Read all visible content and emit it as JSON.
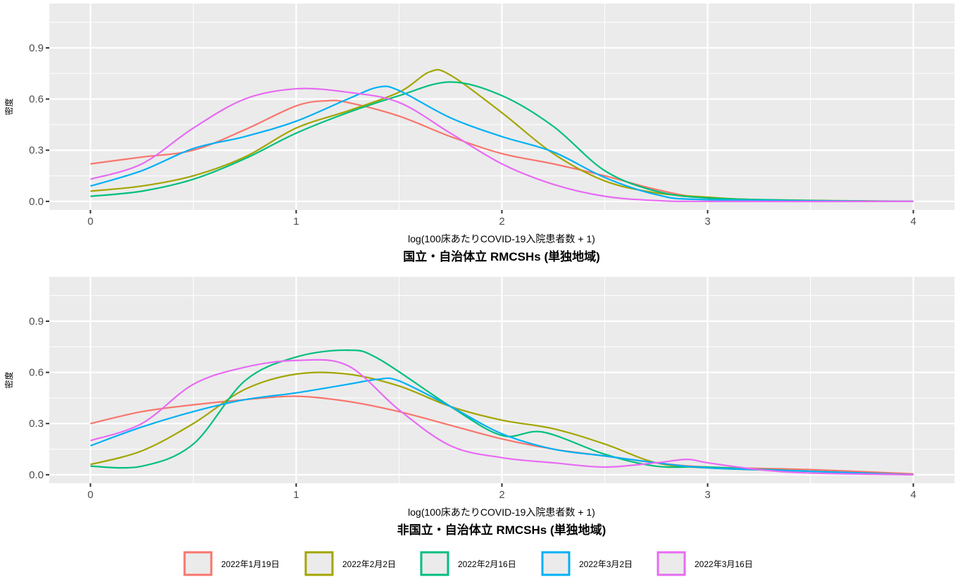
{
  "chart_data": [
    {
      "type": "line",
      "title": "国立・自治体立 RMCSHs (単独地域)",
      "xlabel": "log(100床あたりCOVID-19入院患者数 + 1)",
      "ylabel": "密度",
      "xlim": [
        -0.2,
        4.2
      ],
      "ylim": [
        -0.05,
        1.16
      ],
      "xticks": [
        "0",
        "1",
        "2",
        "3",
        "4"
      ],
      "yticks": [
        "0.0",
        "0.3",
        "0.6",
        "0.9"
      ],
      "grid": true,
      "series": [
        {
          "name": "2022年1月19日",
          "color": "#F8766D",
          "x": [
            0,
            0.25,
            0.5,
            0.75,
            1,
            1.15,
            1.25,
            1.5,
            1.75,
            2,
            2.25,
            2.5,
            2.75,
            3,
            3.5,
            4
          ],
          "y": [
            0.22,
            0.26,
            0.3,
            0.42,
            0.56,
            0.59,
            0.58,
            0.5,
            0.38,
            0.28,
            0.22,
            0.15,
            0.07,
            0.02,
            0.005,
            0
          ]
        },
        {
          "name": "2022年2月2日",
          "color": "#A3A500",
          "x": [
            0,
            0.25,
            0.5,
            0.75,
            1,
            1.25,
            1.5,
            1.65,
            1.75,
            2,
            2.25,
            2.5,
            2.75,
            3,
            3.25,
            4
          ],
          "y": [
            0.06,
            0.09,
            0.15,
            0.26,
            0.43,
            0.53,
            0.64,
            0.76,
            0.74,
            0.52,
            0.28,
            0.12,
            0.05,
            0.025,
            0.01,
            0
          ]
        },
        {
          "name": "2022年2月16日",
          "color": "#00BF7D",
          "x": [
            0,
            0.25,
            0.5,
            0.75,
            1,
            1.25,
            1.5,
            1.75,
            2,
            2.25,
            2.5,
            2.75,
            3,
            3.5,
            4
          ],
          "y": [
            0.03,
            0.06,
            0.13,
            0.25,
            0.4,
            0.52,
            0.62,
            0.7,
            0.62,
            0.44,
            0.18,
            0.06,
            0.02,
            0.005,
            0
          ]
        },
        {
          "name": "2022年3月2日",
          "color": "#00B0F6",
          "x": [
            0,
            0.25,
            0.5,
            0.75,
            1,
            1.25,
            1.4,
            1.5,
            1.75,
            2,
            2.25,
            2.5,
            2.75,
            3,
            4
          ],
          "y": [
            0.09,
            0.18,
            0.31,
            0.38,
            0.47,
            0.6,
            0.67,
            0.65,
            0.49,
            0.38,
            0.29,
            0.14,
            0.04,
            0.01,
            0
          ]
        },
        {
          "name": "2022年3月16日",
          "color": "#E76BF3",
          "x": [
            0,
            0.25,
            0.5,
            0.75,
            1,
            1.25,
            1.5,
            1.75,
            2,
            2.25,
            2.5,
            2.75,
            3,
            4
          ],
          "y": [
            0.13,
            0.22,
            0.43,
            0.6,
            0.66,
            0.64,
            0.58,
            0.4,
            0.22,
            0.1,
            0.03,
            0.005,
            0,
            0
          ]
        }
      ]
    },
    {
      "type": "line",
      "title": "非国立・自治体立 RMCSHs (単独地域)",
      "xlabel": "log(100床あたりCOVID-19入院患者数 + 1)",
      "ylabel": "密度",
      "xlim": [
        -0.2,
        4.2
      ],
      "ylim": [
        -0.05,
        1.16
      ],
      "xticks": [
        "0",
        "1",
        "2",
        "3",
        "4"
      ],
      "yticks": [
        "0.0",
        "0.3",
        "0.6",
        "0.9"
      ],
      "grid": true,
      "series": [
        {
          "name": "2022年1月19日",
          "color": "#F8766D",
          "x": [
            0,
            0.25,
            0.5,
            0.75,
            1,
            1.25,
            1.5,
            1.75,
            2,
            2.25,
            2.5,
            2.75,
            3,
            3.5,
            4
          ],
          "y": [
            0.3,
            0.37,
            0.41,
            0.44,
            0.46,
            0.43,
            0.37,
            0.29,
            0.21,
            0.15,
            0.11,
            0.07,
            0.045,
            0.03,
            0.005
          ]
        },
        {
          "name": "2022年2月2日",
          "color": "#A3A500",
          "x": [
            0,
            0.25,
            0.5,
            0.75,
            1,
            1.25,
            1.5,
            1.75,
            2,
            2.25,
            2.5,
            2.75,
            3,
            3.5,
            4
          ],
          "y": [
            0.06,
            0.14,
            0.3,
            0.5,
            0.59,
            0.59,
            0.52,
            0.4,
            0.32,
            0.27,
            0.18,
            0.07,
            0.04,
            0.02,
            0
          ]
        },
        {
          "name": "2022年2月16日",
          "color": "#00BF7D",
          "x": [
            0,
            0.25,
            0.5,
            0.75,
            1,
            1.25,
            1.4,
            1.75,
            2,
            2.2,
            2.5,
            2.75,
            3,
            3.5,
            4
          ],
          "y": [
            0.05,
            0.05,
            0.18,
            0.55,
            0.69,
            0.73,
            0.68,
            0.4,
            0.23,
            0.25,
            0.12,
            0.05,
            0.045,
            0.02,
            0
          ]
        },
        {
          "name": "2022年3月2日",
          "color": "#00B0F6",
          "x": [
            0,
            0.25,
            0.5,
            0.75,
            1,
            1.25,
            1.4,
            1.5,
            1.75,
            2,
            2.25,
            2.5,
            2.75,
            3,
            3.5,
            4
          ],
          "y": [
            0.17,
            0.28,
            0.37,
            0.44,
            0.48,
            0.53,
            0.56,
            0.55,
            0.4,
            0.24,
            0.15,
            0.11,
            0.07,
            0.04,
            0.02,
            0
          ]
        },
        {
          "name": "2022年3月16日",
          "color": "#E76BF3",
          "x": [
            0,
            0.25,
            0.5,
            0.75,
            1,
            1.25,
            1.5,
            1.75,
            2,
            2.25,
            2.5,
            2.75,
            2.9,
            3,
            3.25,
            3.5,
            4
          ],
          "y": [
            0.2,
            0.3,
            0.53,
            0.63,
            0.67,
            0.64,
            0.38,
            0.17,
            0.1,
            0.07,
            0.045,
            0.07,
            0.09,
            0.07,
            0.03,
            0.01,
            0
          ]
        }
      ]
    }
  ],
  "legend": {
    "position": "bottom",
    "items": [
      {
        "label": "2022年1月19日",
        "color": "#F8766D"
      },
      {
        "label": "2022年2月2日",
        "color": "#A3A500"
      },
      {
        "label": "2022年2月16日",
        "color": "#00BF7D"
      },
      {
        "label": "2022年3月2日",
        "color": "#00B0F6"
      },
      {
        "label": "2022年3月16日",
        "color": "#E76BF3"
      }
    ]
  }
}
